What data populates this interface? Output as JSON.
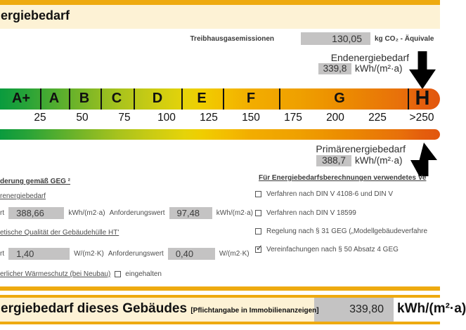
{
  "header": {
    "title": "ergiebedarf"
  },
  "emissions": {
    "label": "Treibhausgasemissionen",
    "value": "130,05",
    "unit": "kg CO₂ - Äquivale"
  },
  "end_energy": {
    "label": "Endenergiebedarf",
    "value": "339,8",
    "unit": "kWh/(m²·a)"
  },
  "primary_energy": {
    "label": "Primärenergiebedarf",
    "value": "388,7",
    "unit": "kWh/(m²·a)"
  },
  "scale": {
    "classes": [
      "A+",
      "A",
      "B",
      "C",
      "D",
      "E",
      "F",
      "G",
      "H"
    ],
    "ticks": [
      "25",
      "50",
      "75",
      "100",
      "125",
      "150",
      "175",
      "200",
      "225",
      ">250"
    ],
    "current_class": "H"
  },
  "requirements": {
    "heading": "derung gemäß GEG ²",
    "primary": {
      "heading": "renergiebedarf",
      "label1": "rt",
      "value1": "388,66",
      "unit1": "kWh/(m2·a)",
      "label2": "Anforderungswert",
      "value2": "97,48",
      "unit2": "kWh/(m2·a)"
    },
    "envelope": {
      "heading": "etische Qualität der Gebäudehülle HT'",
      "label1": "rt",
      "value1": "1,40",
      "unit1": "W/(m2·K)",
      "label2": "Anforderungswert",
      "value2": "0,40",
      "unit2": "W/(m2·K)"
    },
    "heat_protection": {
      "heading": "erlicher Wärmeschutz (bei Neubau)",
      "checkbox_label": "eingehalten",
      "checked": false
    }
  },
  "methods": {
    "heading": "Für Energiebedarfsberechnungen verwendetes Ve",
    "items": [
      {
        "checked": false,
        "label": "Verfahren nach DIN V 4108-6 und DIN V"
      },
      {
        "checked": false,
        "label": "Verfahren nach DIN V 18599"
      },
      {
        "checked": false,
        "label": "Regelung nach § 31 GEG („Modellgebäudeverfahre"
      },
      {
        "checked": true,
        "label": "Vereinfachungen nach § 50 Absatz 4 GEG"
      }
    ]
  },
  "footer": {
    "title": "ergiebedarf dieses Gebäudes",
    "note": "[Pflichtangabe in Immobilienanzeigen]",
    "value": "339,80",
    "unit": "kWh/(m²·a)"
  },
  "colors": {
    "amber": "#eeaa10",
    "cream": "#fdf2d5",
    "field_gray": "#c4c3c3",
    "scale_start_green": "#0a9b3e",
    "scale_end_orange": "#e2560e"
  }
}
